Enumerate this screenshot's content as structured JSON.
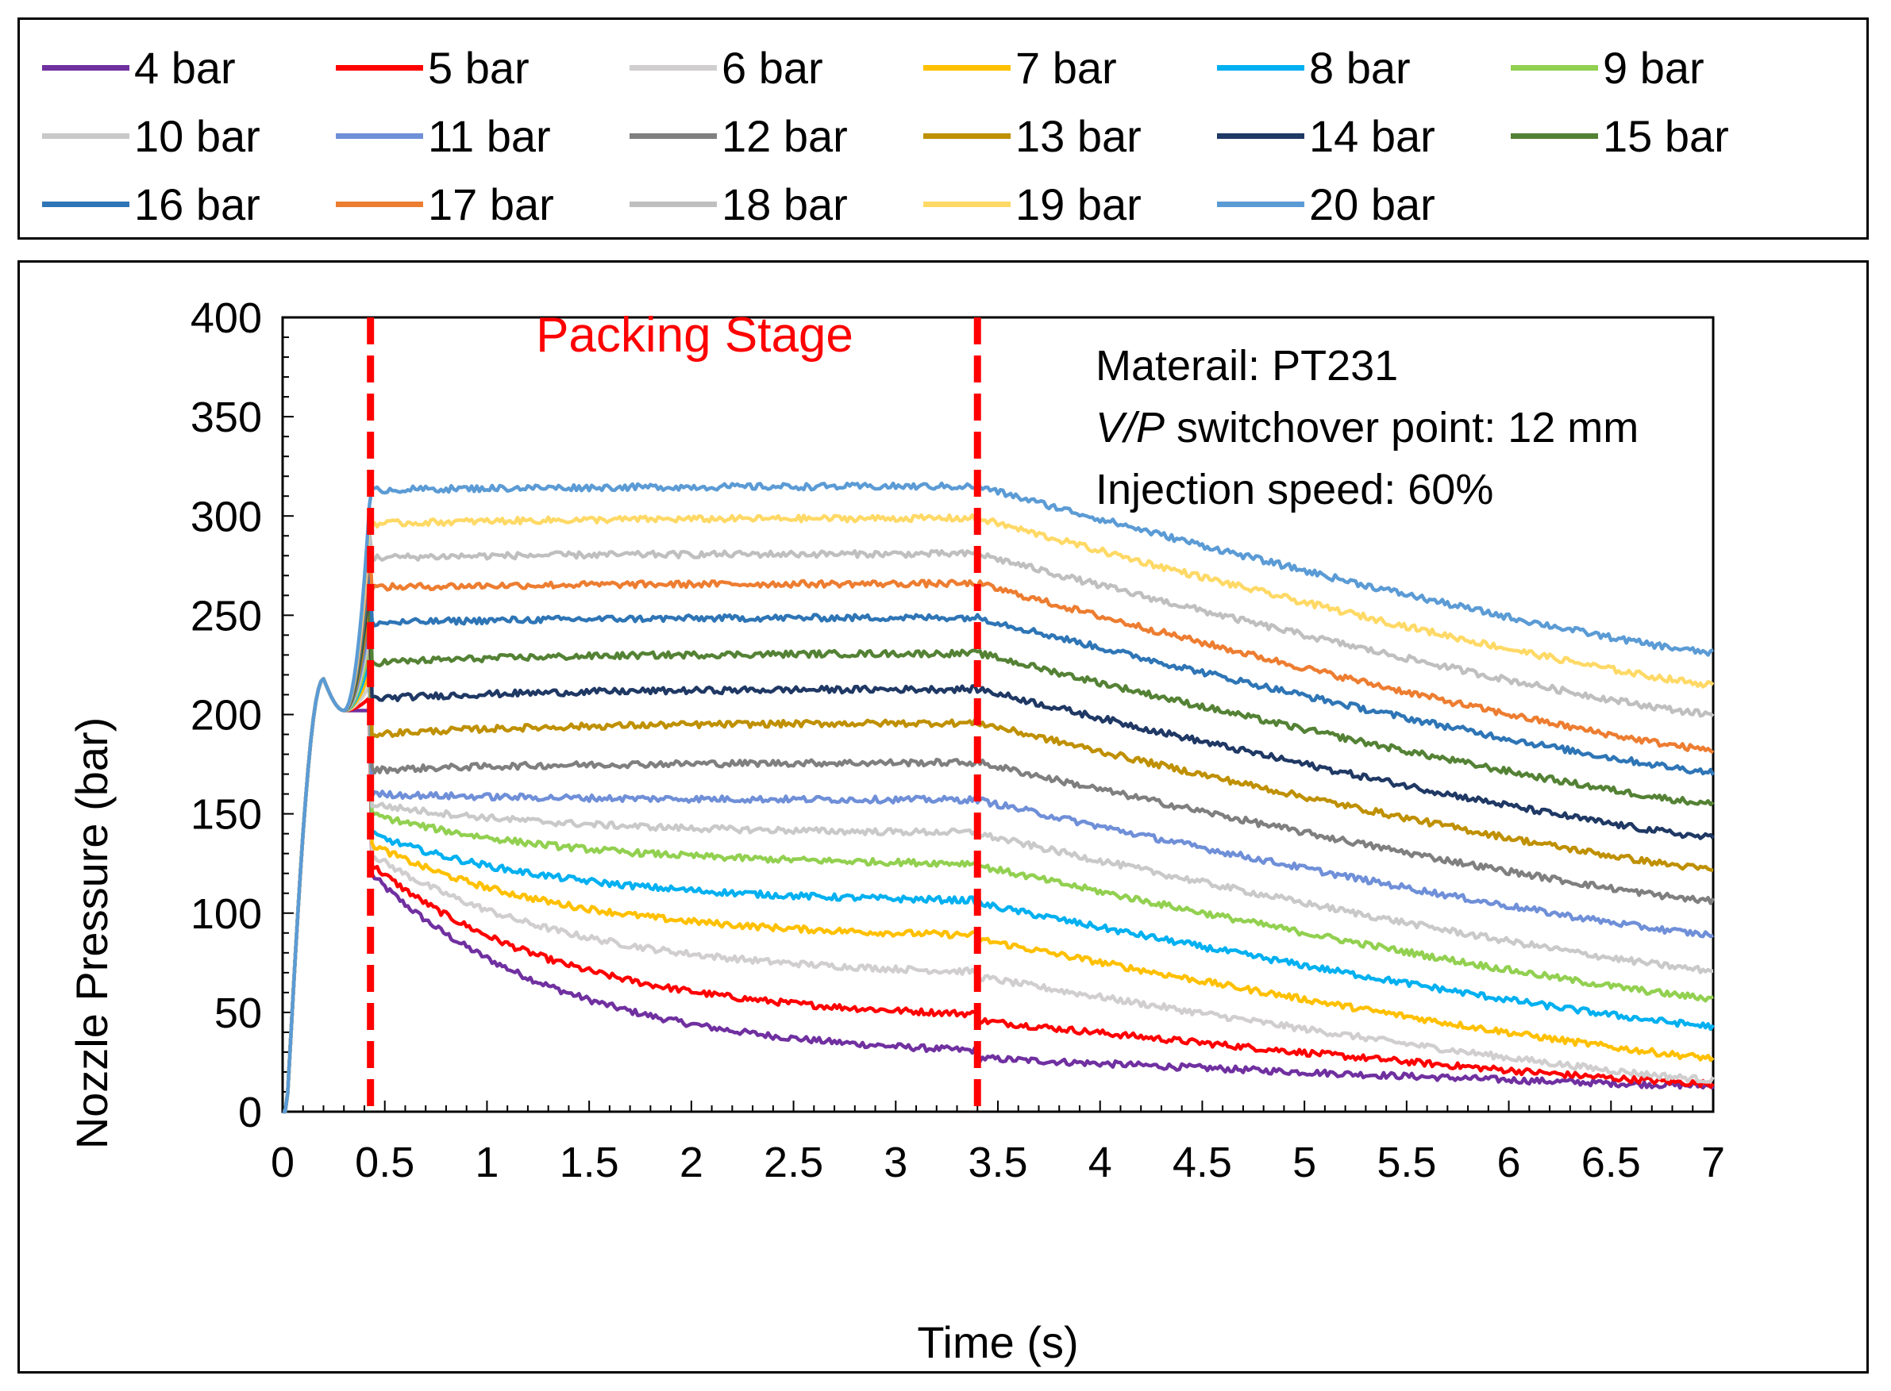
{
  "chart_data": {
    "type": "line",
    "xlabel": "Time (s)",
    "ylabel": "Nozzle Pressure (bar)",
    "xlim": [
      0,
      7
    ],
    "ylim": [
      0,
      400
    ],
    "x_ticks": [
      "0",
      "0.5",
      "1",
      "1.5",
      "2",
      "2.5",
      "3",
      "3.5",
      "4",
      "4.5",
      "5",
      "5.5",
      "6",
      "6.5",
      "7"
    ],
    "y_ticks": [
      "0",
      "50",
      "100",
      "150",
      "200",
      "250",
      "300",
      "350",
      "400"
    ],
    "vlines_time_s": [
      0.43,
      3.4
    ],
    "vline_color": "#ff0000",
    "stage_label": "Packing Stage",
    "annotations": {
      "material_prefix": "Materail: PT231",
      "vp_italic": "V/P",
      "vp_rest": " switchover point: 12 mm",
      "speed": "Injection speed: 60%"
    },
    "series_profile": {
      "t_switch_s": 0.43,
      "t_hold_end_s": 3.4,
      "units": "bar"
    },
    "series": [
      {
        "name": "4 bar",
        "color": "#7030a0",
        "pack_start": 120,
        "pack_end": 27,
        "end_7s": 13
      },
      {
        "name": "5 bar",
        "color": "#ff0000",
        "pack_start": 125,
        "pack_end": 46,
        "end_7s": 14
      },
      {
        "name": "6 bar",
        "color": "#d0cece",
        "pack_start": 130,
        "pack_end": 68,
        "end_7s": 16
      },
      {
        "name": "7 bar",
        "color": "#ffc000",
        "pack_start": 135,
        "pack_end": 87,
        "end_7s": 27
      },
      {
        "name": "8 bar",
        "color": "#00b0f0",
        "pack_start": 140,
        "pack_end": 105,
        "end_7s": 43
      },
      {
        "name": "9 bar",
        "color": "#92d050",
        "pack_start": 150,
        "pack_end": 124,
        "end_7s": 57
      },
      {
        "name": "10 bar",
        "color": "#c9c9c9",
        "pack_start": 155,
        "pack_end": 140,
        "end_7s": 71
      },
      {
        "name": "11 bar",
        "color": "#6f8fd8",
        "pack_start": 160,
        "pack_end": 157,
        "end_7s": 89
      },
      {
        "name": "12 bar",
        "color": "#7f7f7f",
        "pack_start": 172,
        "pack_end": 176,
        "end_7s": 106
      },
      {
        "name": "13 bar",
        "color": "#bf9000",
        "pack_start": 190,
        "pack_end": 196,
        "end_7s": 122
      },
      {
        "name": "14 bar",
        "color": "#1f3864",
        "pack_start": 208,
        "pack_end": 213,
        "end_7s": 138
      },
      {
        "name": "15 bar",
        "color": "#548235",
        "pack_start": 226,
        "pack_end": 231,
        "end_7s": 155
      },
      {
        "name": "16 bar",
        "color": "#2e75b6",
        "pack_start": 246,
        "pack_end": 249,
        "end_7s": 171
      },
      {
        "name": "17 bar",
        "color": "#ed7d31",
        "pack_start": 264,
        "pack_end": 266,
        "end_7s": 182
      },
      {
        "name": "18 bar",
        "color": "#bfbfbf",
        "pack_start": 279,
        "pack_end": 281,
        "end_7s": 200
      },
      {
        "name": "19 bar",
        "color": "#ffd966",
        "pack_start": 296,
        "pack_end": 299,
        "end_7s": 215
      },
      {
        "name": "20 bar",
        "color": "#5b9bd5",
        "pack_start": 313,
        "pack_end": 315,
        "end_7s": 231
      }
    ]
  }
}
